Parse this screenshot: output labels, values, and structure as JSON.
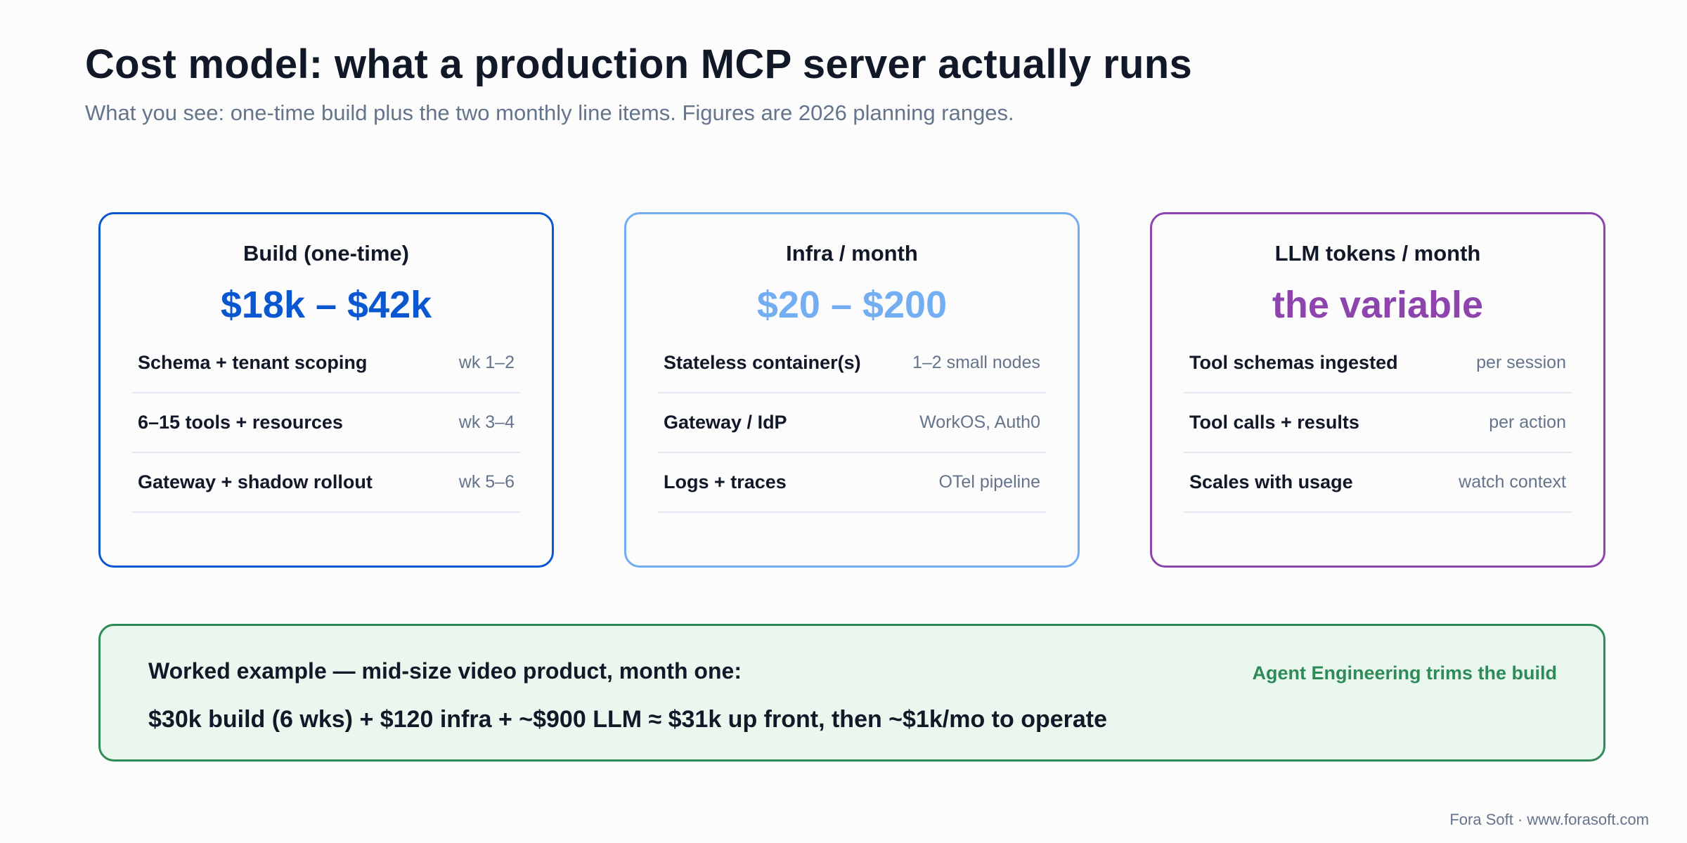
{
  "header": {
    "title": "Cost model: what a production MCP server actually runs",
    "subtitle": "What you see: one-time build plus the two monthly line items. Figures are 2026 planning ranges."
  },
  "cards": [
    {
      "title": "Build (one-time)",
      "value": "$18k – $42k",
      "color": "#0b57d0",
      "rows": [
        {
          "label": "Schema + tenant scoping",
          "value": "wk 1–2"
        },
        {
          "label": "6–15 tools + resources",
          "value": "wk 3–4"
        },
        {
          "label": "Gateway + shadow rollout",
          "value": "wk 5–6"
        }
      ]
    },
    {
      "title": "Infra / month",
      "value": "$20 – $200",
      "color": "#73aef2",
      "rows": [
        {
          "label": "Stateless container(s)",
          "value": "1–2 small nodes"
        },
        {
          "label": "Gateway / IdP",
          "value": "WorkOS, Auth0"
        },
        {
          "label": "Logs + traces",
          "value": "OTel pipeline"
        }
      ]
    },
    {
      "title": "LLM tokens / month",
      "value": "the variable",
      "color": "#8e44ad",
      "rows": [
        {
          "label": "Tool schemas ingested",
          "value": "per session"
        },
        {
          "label": "Tool calls + results",
          "value": "per action"
        },
        {
          "label": "Scales with usage",
          "value": "watch context"
        }
      ]
    }
  ],
  "example": {
    "heading": "Worked example — mid-size video product, month one:",
    "tag": "Agent Engineering trims the build",
    "body": "$30k build (6 wks) + $120 infra + ~$900 LLM ≈ $31k up front, then ~$1k/mo to operate",
    "color": "#2e8b57"
  },
  "footer": {
    "text": "Fora Soft · www.forasoft.com"
  }
}
